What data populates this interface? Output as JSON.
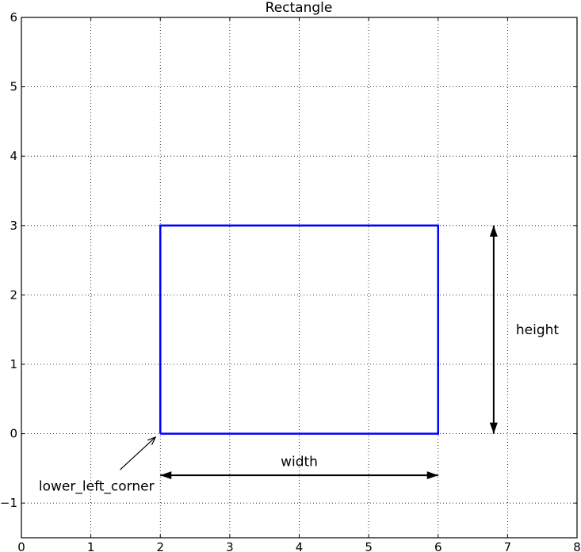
{
  "chart_data": {
    "type": "line",
    "title": "Rectangle",
    "xlabel": "",
    "ylabel": "",
    "xlim": [
      0,
      8
    ],
    "ylim": [
      -1.5,
      6
    ],
    "grid": true,
    "x_ticks": [
      "0",
      "1",
      "2",
      "3",
      "4",
      "5",
      "6",
      "7",
      "8"
    ],
    "y_ticks": [
      "−1",
      "0",
      "1",
      "2",
      "3",
      "4",
      "5",
      "6"
    ],
    "series": [
      {
        "color": "#0000ff",
        "points": [
          [
            2,
            0
          ],
          [
            6,
            0
          ],
          [
            6,
            3
          ],
          [
            2,
            3
          ],
          [
            2,
            0
          ]
        ]
      }
    ],
    "annotations": [
      {
        "text": "width",
        "x": 4,
        "y": -0.4,
        "arrow": {
          "from": [
            2,
            -0.6
          ],
          "to": [
            6,
            -0.6
          ],
          "double": true
        }
      },
      {
        "text": "height",
        "x": 7.12,
        "y": 1.5,
        "arrow": {
          "from": [
            6.8,
            0
          ],
          "to": [
            6.8,
            3
          ],
          "double": true
        }
      },
      {
        "text": "lower_left_corner",
        "x": 0.25,
        "y": -0.75,
        "arrow": {
          "from": [
            1.42,
            -0.52
          ],
          "to": [
            1.93,
            -0.05
          ],
          "double": false
        }
      }
    ]
  }
}
